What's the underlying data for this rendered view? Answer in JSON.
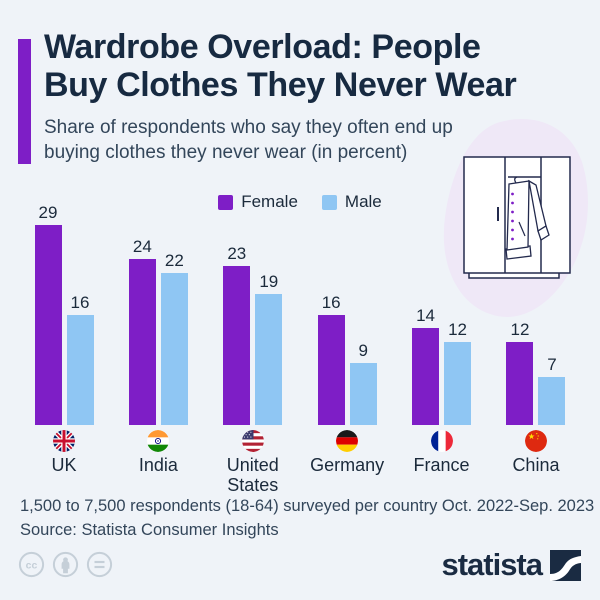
{
  "header": {
    "title_lines": [
      "Wardrobe Overload: People",
      "Buy Clothes They Never Wear"
    ],
    "subtitle_lines": [
      "Share of respondents who say they often end up",
      "buying clothes they never wear (in percent)"
    ]
  },
  "chart_data": {
    "type": "bar",
    "title": "Wardrobe Overload: People Buy Clothes They Never Wear",
    "subtitle": "Share of respondents who say they often end up buying clothes they never wear (in percent)",
    "categories": [
      "UK",
      "India",
      "United States",
      "Germany",
      "France",
      "China"
    ],
    "series": [
      {
        "name": "Female",
        "color": "#7E1EC6",
        "values": [
          29,
          24,
          23,
          16,
          14,
          12
        ]
      },
      {
        "name": "Male",
        "color": "#8FC6F3",
        "values": [
          16,
          22,
          19,
          9,
          12,
          7
        ]
      }
    ],
    "flags": [
      "uk",
      "india",
      "us",
      "germany",
      "france",
      "china"
    ],
    "unit": "percent",
    "ylim": [
      0,
      29
    ],
    "grid": false,
    "legend_position": "top",
    "value_labels": true
  },
  "footer": {
    "note": "1,500 to 7,500 respondents (18-64) surveyed per country Oct. 2022-Sep. 2023",
    "source": "Source: Statista Consumer Insights",
    "brand": "statista"
  },
  "colors": {
    "background": "#EFF3F8",
    "accent_purple": "#7E1EC6",
    "female_bar": "#7E1EC6",
    "male_bar": "#8FC6F3",
    "title_text": "#172A41",
    "body_text": "#33465A",
    "blob": "#EFE8F7",
    "brand_navy": "#1A2B42",
    "cc_gray": "#C5CFD8"
  }
}
